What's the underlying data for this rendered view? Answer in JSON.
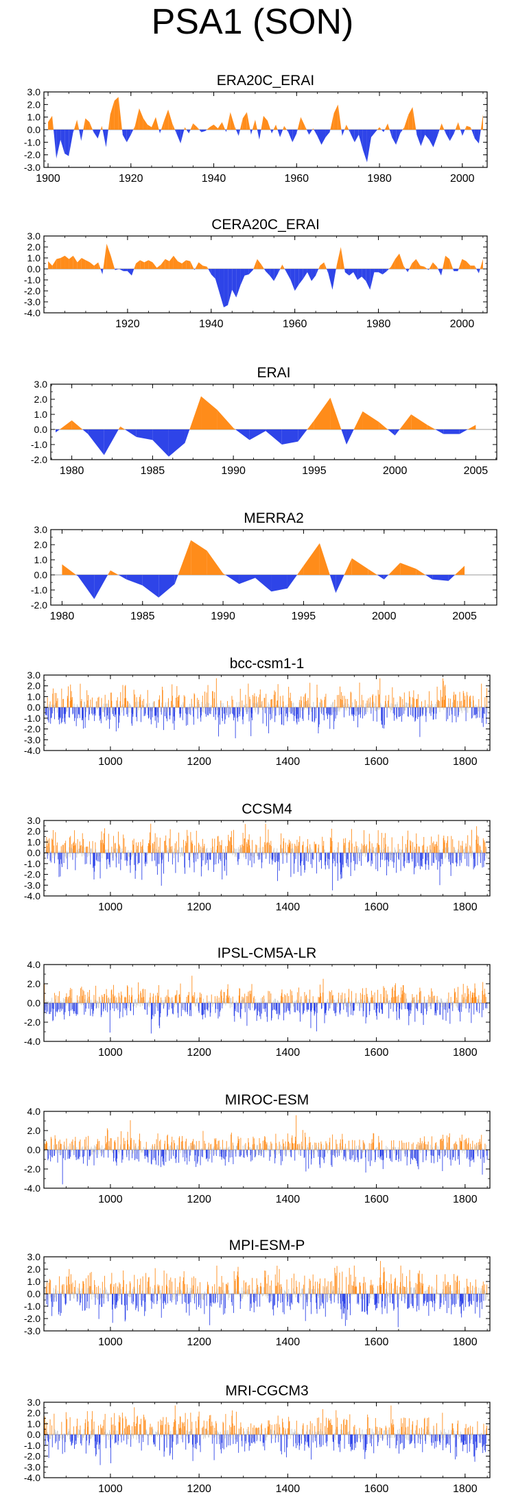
{
  "figure_title": "PSA1 (SON)",
  "colors": {
    "positive": "#ff8c1a",
    "negative": "#2e44e8",
    "axis": "#000000",
    "zero_line": "#999999"
  },
  "chart_data": [
    {
      "type": "area",
      "title": "ERA20C_ERAI",
      "xlabel": "",
      "ylabel": "",
      "xlim": [
        1899,
        2006
      ],
      "ylim": [
        -3.0,
        3.0
      ],
      "yticks": [
        3.0,
        2.0,
        1.0,
        0.0,
        -1.0,
        -2.0,
        -3.0
      ],
      "yticklabels": [
        "3.0",
        "2.0",
        "1.0",
        "0.0",
        "-1.0",
        "-2.0",
        "-3.0"
      ],
      "xticks": [
        1900,
        1920,
        1940,
        1960,
        1980,
        2000
      ],
      "xticklabels": [
        "1900",
        "1920",
        "1940",
        "1960",
        "1980",
        "2000"
      ],
      "x": [
        1900,
        1901,
        1902,
        1903,
        1904,
        1905,
        1906,
        1907,
        1908,
        1909,
        1910,
        1911,
        1912,
        1913,
        1914,
        1915,
        1916,
        1917,
        1918,
        1919,
        1920,
        1921,
        1922,
        1923,
        1924,
        1925,
        1926,
        1927,
        1928,
        1929,
        1930,
        1931,
        1932,
        1933,
        1934,
        1935,
        1936,
        1937,
        1938,
        1939,
        1940,
        1941,
        1942,
        1943,
        1944,
        1945,
        1946,
        1947,
        1948,
        1949,
        1950,
        1951,
        1952,
        1953,
        1954,
        1955,
        1956,
        1957,
        1958,
        1959,
        1960,
        1961,
        1962,
        1963,
        1964,
        1965,
        1966,
        1967,
        1968,
        1969,
        1970,
        1971,
        1972,
        1973,
        1974,
        1975,
        1976,
        1977,
        1978,
        1979,
        1980,
        1981,
        1982,
        1983,
        1984,
        1985,
        1986,
        1987,
        1988,
        1989,
        1990,
        1991,
        1992,
        1993,
        1994,
        1995,
        1996,
        1997,
        1998,
        1999,
        2000,
        2001,
        2002,
        2003,
        2004,
        2005
      ],
      "y": [
        0.6,
        1.1,
        -2.3,
        -0.8,
        -1.9,
        -2.1,
        -0.3,
        0.8,
        -0.9,
        0.9,
        0.6,
        -0.2,
        -0.7,
        0.3,
        -1.4,
        1.2,
        2.3,
        2.6,
        -0.4,
        -1.0,
        -0.4,
        0.3,
        1.7,
        0.9,
        0.4,
        0.2,
        1.0,
        -0.3,
        0.7,
        1.6,
        0.5,
        -0.3,
        -1.1,
        0.2,
        -0.3,
        0.5,
        0.2,
        -0.2,
        -0.1,
        0.2,
        0.4,
        0.1,
        0.6,
        -0.2,
        1.4,
        0.3,
        -0.5,
        0.9,
        1.4,
        -0.4,
        0.8,
        -0.8,
        1.1,
        0.7,
        -0.3,
        0.4,
        -0.6,
        0.3,
        -0.2,
        -1.0,
        -0.3,
        1.0,
        0.3,
        -0.4,
        0.1,
        -0.5,
        -1.2,
        -0.6,
        -0.2,
        1.3,
        2.0,
        -0.5,
        0.4,
        -0.3,
        -1.0,
        -0.4,
        -1.6,
        -2.6,
        -0.6,
        -0.2,
        0.2,
        -0.2,
        0.5,
        -0.6,
        -1.2,
        -0.3,
        0.2,
        1.2,
        1.8,
        -0.4,
        -1.3,
        -0.4,
        -0.8,
        -1.4,
        -0.5,
        0.5,
        -0.3,
        -0.9,
        -0.3,
        0.6,
        -0.5,
        0.3,
        0.2,
        -0.7,
        -1.1,
        1.2
      ]
    },
    {
      "type": "area",
      "title": "CERA20C_ERAI",
      "xlabel": "",
      "ylabel": "",
      "xlim": [
        1900,
        2006
      ],
      "ylim": [
        -4.0,
        3.0
      ],
      "yticks": [
        3.0,
        2.0,
        1.0,
        0.0,
        -1.0,
        -2.0,
        -3.0,
        -4.0
      ],
      "yticklabels": [
        "3.0",
        "2.0",
        "1.0",
        "0.0",
        "-1.0",
        "-2.0",
        "-3.0",
        "-4.0"
      ],
      "xticks": [
        1920,
        1940,
        1960,
        1980,
        2000
      ],
      "xticklabels": [
        "1920",
        "1940",
        "1960",
        "1980",
        "2000"
      ],
      "x": [
        1901,
        1902,
        1903,
        1904,
        1905,
        1906,
        1907,
        1908,
        1909,
        1910,
        1911,
        1912,
        1913,
        1914,
        1915,
        1916,
        1917,
        1918,
        1919,
        1920,
        1921,
        1922,
        1923,
        1924,
        1925,
        1926,
        1927,
        1928,
        1929,
        1930,
        1931,
        1932,
        1933,
        1934,
        1935,
        1936,
        1937,
        1938,
        1939,
        1940,
        1941,
        1942,
        1943,
        1944,
        1945,
        1946,
        1947,
        1948,
        1949,
        1950,
        1951,
        1952,
        1953,
        1954,
        1955,
        1956,
        1957,
        1958,
        1959,
        1960,
        1961,
        1962,
        1963,
        1964,
        1965,
        1966,
        1967,
        1968,
        1969,
        1970,
        1971,
        1972,
        1973,
        1974,
        1975,
        1976,
        1977,
        1978,
        1979,
        1980,
        1981,
        1982,
        1983,
        1984,
        1985,
        1986,
        1987,
        1988,
        1989,
        1990,
        1991,
        1992,
        1993,
        1994,
        1995,
        1996,
        1997,
        1998,
        1999,
        2000,
        2001,
        2002,
        2003,
        2004,
        2005
      ],
      "y": [
        0.7,
        0.3,
        0.9,
        1.0,
        1.2,
        0.9,
        1.2,
        0.6,
        1.0,
        0.8,
        0.6,
        0.3,
        0.6,
        -0.5,
        2.3,
        1.2,
        -0.1,
        0.0,
        -0.2,
        -0.2,
        -0.6,
        0.5,
        0.8,
        0.6,
        0.8,
        0.6,
        0.1,
        0.4,
        0.9,
        0.7,
        1.2,
        0.7,
        0.5,
        0.8,
        0.7,
        -0.1,
        0.6,
        0.3,
        0.2,
        -0.5,
        -0.9,
        -2.2,
        -3.5,
        -3.3,
        -1.9,
        -2.6,
        -1.5,
        -0.6,
        -0.5,
        -0.1,
        0.9,
        0.4,
        -0.2,
        -0.6,
        -1.1,
        -0.4,
        0.4,
        -0.3,
        -1.0,
        -2.0,
        -1.4,
        -0.9,
        -0.3,
        -1.1,
        -0.6,
        0.3,
        0.6,
        -0.4,
        -1.9,
        0.3,
        2.0,
        -0.3,
        -0.6,
        -0.3,
        -1.0,
        -0.7,
        -1.1,
        -1.9,
        -0.3,
        -0.3,
        -0.5,
        -0.2,
        0.2,
        0.9,
        1.4,
        0.3,
        -0.3,
        0.5,
        0.9,
        0.3,
        0.2,
        -0.1,
        0.6,
        0.2,
        -0.6,
        1.2,
        0.9,
        -0.2,
        -0.2,
        0.9,
        0.7,
        0.3,
        0.3,
        -0.4,
        0.9
      ]
    },
    {
      "type": "area",
      "title": "ERAI",
      "xlabel": "",
      "ylabel": "",
      "xlim": [
        1978.7,
        2006.3
      ],
      "ylim": [
        -2.0,
        3.0
      ],
      "yticks": [
        3.0,
        2.0,
        1.0,
        0.0,
        -1.0,
        -2.0
      ],
      "yticklabels": [
        "3.0",
        "2.0",
        "1.0",
        "0.0",
        "-1.0",
        "-2.0"
      ],
      "xticks": [
        1980,
        1985,
        1990,
        1995,
        2000,
        2005
      ],
      "xticklabels": [
        "1980",
        "1985",
        "1990",
        "1995",
        "2000",
        "2005"
      ],
      "x": [
        1979,
        1980,
        1981,
        1982,
        1983,
        1984,
        1985,
        1986,
        1987,
        1988,
        1989,
        1990,
        1991,
        1992,
        1993,
        1994,
        1995,
        1996,
        1997,
        1998,
        1999,
        2000,
        2001,
        2002,
        2003,
        2004,
        2005
      ],
      "y": [
        -0.2,
        0.6,
        -0.3,
        -1.7,
        0.2,
        -0.5,
        -0.7,
        -1.8,
        -0.9,
        2.2,
        1.3,
        0.1,
        -0.7,
        -0.1,
        -1.0,
        -0.8,
        0.6,
        2.1,
        -1.0,
        1.2,
        0.5,
        -0.4,
        1.0,
        0.3,
        -0.3,
        -0.3,
        0.3
      ]
    },
    {
      "type": "area",
      "title": "MERRA2",
      "xlabel": "",
      "ylabel": "",
      "xlim": [
        1979.3,
        2007
      ],
      "ylim": [
        -2.0,
        3.0
      ],
      "yticks": [
        3.0,
        2.0,
        1.0,
        0.0,
        -1.0,
        -2.0
      ],
      "yticklabels": [
        "3.0",
        "2.0",
        "1.0",
        "0.0",
        "-1.0",
        "-2.0"
      ],
      "xticks": [
        1980,
        1985,
        1990,
        1995,
        2000,
        2005
      ],
      "xticklabels": [
        "1980",
        "1985",
        "1990",
        "1995",
        "2000",
        "2005"
      ],
      "x": [
        1980,
        1981,
        1982,
        1983,
        1984,
        1985,
        1986,
        1987,
        1988,
        1989,
        1990,
        1991,
        1992,
        1993,
        1994,
        1995,
        1996,
        1997,
        1998,
        1999,
        2000,
        2001,
        2002,
        2003,
        2004,
        2005
      ],
      "y": [
        0.7,
        -0.1,
        -1.6,
        0.3,
        -0.3,
        -0.7,
        -1.5,
        -0.6,
        2.3,
        1.6,
        0.1,
        -0.6,
        -0.2,
        -1.1,
        -0.9,
        0.6,
        2.1,
        -1.2,
        1.1,
        0.4,
        -0.3,
        0.8,
        0.4,
        -0.3,
        -0.4,
        0.6
      ]
    },
    {
      "type": "bar",
      "title": "bcc-csm1-1",
      "xlabel": "",
      "ylabel": "",
      "xlim": [
        850,
        1856
      ],
      "ylim": [
        -4.0,
        3.0
      ],
      "yticks": [
        3.0,
        2.0,
        1.0,
        0.0,
        -1.0,
        -2.0,
        -3.0,
        -4.0
      ],
      "yticklabels": [
        "3.0",
        "2.0",
        "1.0",
        "0.0",
        "-1.0",
        "-2.0",
        "-3.0",
        "-4.0"
      ],
      "xticks": [
        1000,
        1200,
        1400,
        1600,
        1800
      ],
      "xticklabels": [
        "1000",
        "1200",
        "1400",
        "1600",
        "1800"
      ],
      "series_generator": {
        "start": 850,
        "end": 1850,
        "amplitude": 1.0,
        "seed": 11
      }
    },
    {
      "type": "bar",
      "title": "CCSM4",
      "xlabel": "",
      "ylabel": "",
      "xlim": [
        850,
        1856
      ],
      "ylim": [
        -4.0,
        3.0
      ],
      "yticks": [
        3.0,
        2.0,
        1.0,
        0.0,
        -1.0,
        -2.0,
        -3.0,
        -4.0
      ],
      "yticklabels": [
        "3.0",
        "2.0",
        "1.0",
        "0.0",
        "-1.0",
        "-2.0",
        "-3.0",
        "-4.0"
      ],
      "xticks": [
        1000,
        1200,
        1400,
        1600,
        1800
      ],
      "xticklabels": [
        "1000",
        "1200",
        "1400",
        "1600",
        "1800"
      ],
      "series_generator": {
        "start": 850,
        "end": 1850,
        "amplitude": 1.05,
        "seed": 23
      }
    },
    {
      "type": "bar",
      "title": "IPSL-CM5A-LR",
      "xlabel": "",
      "ylabel": "",
      "xlim": [
        850,
        1856
      ],
      "ylim": [
        -4.0,
        4.0
      ],
      "yticks": [
        4.0,
        2.0,
        0.0,
        -2.0,
        -4.0
      ],
      "yticklabels": [
        "4.0",
        "2.0",
        "0.0",
        "-2.0",
        "-4.0"
      ],
      "xticks": [
        1000,
        1200,
        1400,
        1600,
        1800
      ],
      "xticklabels": [
        "1000",
        "1200",
        "1400",
        "1600",
        "1800"
      ],
      "series_generator": {
        "start": 850,
        "end": 1850,
        "amplitude": 1.0,
        "seed": 37
      }
    },
    {
      "type": "bar",
      "title": "MIROC-ESM",
      "xlabel": "",
      "ylabel": "",
      "xlim": [
        850,
        1856
      ],
      "ylim": [
        -4.0,
        4.0
      ],
      "yticks": [
        4.0,
        2.0,
        0.0,
        -2.0,
        -4.0
      ],
      "yticklabels": [
        "4.0",
        "2.0",
        "0.0",
        "-2.0",
        "-4.0"
      ],
      "xticks": [
        1000,
        1200,
        1400,
        1600,
        1800
      ],
      "xticklabels": [
        "1000",
        "1200",
        "1400",
        "1600",
        "1800"
      ],
      "series_generator": {
        "start": 850,
        "end": 1850,
        "amplitude": 0.95,
        "seed": 41
      }
    },
    {
      "type": "bar",
      "title": "MPI-ESM-P",
      "xlabel": "",
      "ylabel": "",
      "xlim": [
        850,
        1856
      ],
      "ylim": [
        -3.0,
        3.0
      ],
      "yticks": [
        3.0,
        2.0,
        1.0,
        0.0,
        -1.0,
        -2.0,
        -3.0
      ],
      "yticklabels": [
        "3.0",
        "2.0",
        "1.0",
        "0.0",
        "-1.0",
        "-2.0",
        "-3.0"
      ],
      "xticks": [
        1000,
        1200,
        1400,
        1600,
        1800
      ],
      "xticklabels": [
        "1000",
        "1200",
        "1400",
        "1600",
        "1800"
      ],
      "series_generator": {
        "start": 850,
        "end": 1850,
        "amplitude": 1.0,
        "seed": 53
      }
    },
    {
      "type": "bar",
      "title": "MRI-CGCM3",
      "xlabel": "",
      "ylabel": "",
      "xlim": [
        850,
        1856
      ],
      "ylim": [
        -4.0,
        3.0
      ],
      "yticks": [
        3.0,
        2.0,
        1.0,
        0.0,
        -1.0,
        -2.0,
        -3.0,
        -4.0
      ],
      "yticklabels": [
        "3.0",
        "2.0",
        "1.0",
        "0.0",
        "-1.0",
        "-2.0",
        "-3.0",
        "-4.0"
      ],
      "xticks": [
        1000,
        1200,
        1400,
        1600,
        1800
      ],
      "xticklabels": [
        "1000",
        "1200",
        "1400",
        "1600",
        "1800"
      ],
      "series_generator": {
        "start": 850,
        "end": 1850,
        "amplitude": 1.0,
        "seed": 67
      }
    }
  ]
}
